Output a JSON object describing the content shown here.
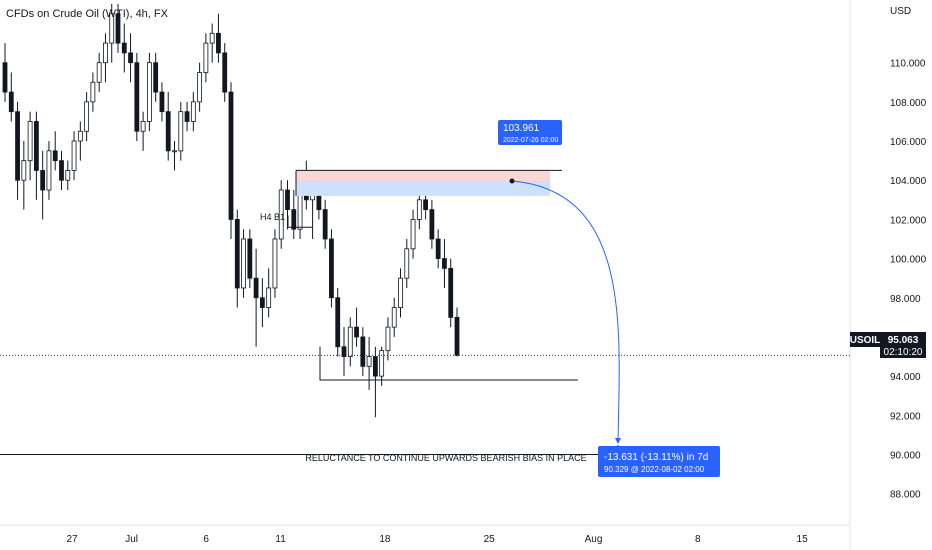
{
  "chart_data": {
    "type": "candlestick",
    "title": "CFDs on Crude Oil (WTI), 4h, FX",
    "symbol": "USOIL",
    "currency": "USD",
    "last_price": "95.063",
    "countdown": "02:10:20",
    "ylim": [
      86.4,
      113.2
    ],
    "y_ticks": [
      "110.000",
      "108.000",
      "106.000",
      "104.000",
      "102.000",
      "100.000",
      "98.000",
      "96.000",
      "94.000",
      "92.000",
      "90.000",
      "88.000"
    ],
    "x_ticks": [
      {
        "label": "27",
        "day": 27
      },
      {
        "label": "Jul",
        "day": 31
      },
      {
        "label": "6",
        "day": 36
      },
      {
        "label": "11",
        "day": 41
      },
      {
        "label": "18",
        "day": 48
      },
      {
        "label": "25",
        "day": 55
      },
      {
        "label": "Aug",
        "day": 62
      },
      {
        "label": "8",
        "day": 69
      },
      {
        "label": "15",
        "day": 76
      }
    ],
    "x_unit_note": "days from 1 June 2022",
    "candles": [
      [
        110.0,
        111.0,
        108.0,
        108.5
      ],
      [
        108.5,
        109.5,
        107.0,
        107.5
      ],
      [
        107.5,
        108.0,
        103.0,
        104.0
      ],
      [
        104.0,
        106.0,
        102.5,
        105.0
      ],
      [
        105.0,
        107.5,
        104.0,
        107.0
      ],
      [
        107.0,
        107.5,
        103.0,
        104.5
      ],
      [
        104.5,
        105.5,
        102.0,
        103.5
      ],
      [
        103.5,
        106.0,
        103.0,
        105.5
      ],
      [
        105.5,
        106.5,
        104.5,
        105.0
      ],
      [
        105.0,
        105.5,
        103.5,
        104.0
      ],
      [
        104.0,
        105.0,
        103.5,
        104.5
      ],
      [
        104.5,
        106.5,
        104.0,
        106.0
      ],
      [
        106.0,
        107.0,
        105.0,
        106.5
      ],
      [
        106.5,
        108.5,
        106.0,
        108.0
      ],
      [
        108.0,
        109.5,
        107.5,
        109.0
      ],
      [
        109.0,
        110.5,
        108.5,
        110.0
      ],
      [
        110.0,
        111.5,
        109.0,
        111.0
      ],
      [
        111.0,
        113.0,
        110.0,
        112.5
      ],
      [
        112.5,
        113.0,
        110.5,
        111.0
      ],
      [
        111.0,
        112.0,
        109.5,
        110.5
      ],
      [
        110.5,
        111.5,
        109.0,
        110.0
      ],
      [
        110.0,
        110.5,
        106.0,
        106.5
      ],
      [
        106.5,
        107.5,
        105.5,
        107.0
      ],
      [
        107.0,
        110.5,
        106.5,
        110.0
      ],
      [
        110.0,
        110.5,
        108.0,
        108.5
      ],
      [
        108.5,
        109.0,
        107.0,
        107.5
      ],
      [
        107.5,
        108.5,
        105.0,
        105.5
      ],
      [
        105.5,
        106.0,
        104.5,
        105.5
      ],
      [
        105.5,
        108.0,
        105.0,
        107.5
      ],
      [
        107.5,
        108.0,
        106.5,
        107.0
      ],
      [
        107.0,
        108.5,
        106.5,
        108.0
      ],
      [
        108.0,
        110.0,
        107.5,
        109.5
      ],
      [
        109.5,
        111.5,
        109.0,
        111.0
      ],
      [
        111.0,
        112.0,
        110.0,
        111.5
      ],
      [
        111.5,
        112.5,
        110.0,
        110.5
      ],
      [
        110.5,
        111.0,
        108.0,
        108.5
      ],
      [
        108.5,
        109.0,
        101.0,
        102.0
      ],
      [
        102.0,
        102.5,
        97.5,
        98.5
      ],
      [
        98.5,
        101.5,
        98.0,
        101.0
      ],
      [
        101.0,
        101.5,
        98.5,
        99.0
      ],
      [
        99.0,
        100.5,
        95.5,
        98.0
      ],
      [
        98.0,
        99.0,
        96.5,
        97.5
      ],
      [
        97.5,
        99.5,
        97.0,
        98.5
      ],
      [
        98.5,
        101.5,
        98.0,
        101.0
      ],
      [
        101.0,
        104.0,
        100.5,
        103.5
      ],
      [
        103.5,
        104.0,
        101.5,
        102.5
      ],
      [
        102.5,
        103.5,
        101.0,
        101.5
      ],
      [
        101.5,
        104.5,
        101.0,
        104.0
      ],
      [
        104.0,
        105.0,
        102.5,
        103.0
      ],
      [
        103.0,
        104.5,
        101.0,
        104.0
      ],
      [
        104.0,
        104.5,
        102.0,
        102.5
      ],
      [
        102.5,
        103.0,
        100.5,
        101.0
      ],
      [
        101.0,
        101.5,
        97.5,
        98.0
      ],
      [
        98.0,
        98.5,
        95.0,
        95.5
      ],
      [
        95.5,
        96.5,
        94.0,
        95.0
      ],
      [
        95.0,
        97.0,
        94.5,
        96.5
      ],
      [
        96.5,
        97.5,
        95.5,
        96.0
      ],
      [
        96.0,
        96.5,
        94.0,
        94.5
      ],
      [
        94.5,
        96.0,
        93.3,
        95.0
      ],
      [
        95.0,
        95.5,
        91.9,
        94.0
      ],
      [
        94.0,
        95.5,
        93.5,
        95.3
      ],
      [
        95.3,
        97.0,
        94.8,
        96.5
      ],
      [
        96.5,
        98.0,
        96.0,
        97.5
      ],
      [
        97.5,
        99.5,
        97.0,
        99.0
      ],
      [
        99.0,
        101.0,
        98.5,
        100.5
      ],
      [
        100.5,
        102.5,
        100.0,
        102.0
      ],
      [
        102.0,
        103.5,
        101.5,
        103.0
      ],
      [
        103.0,
        104.3,
        102.0,
        102.5
      ],
      [
        102.5,
        103.0,
        100.5,
        101.0
      ],
      [
        101.0,
        101.5,
        99.5,
        100.0
      ],
      [
        100.0,
        101.0,
        98.5,
        99.5
      ],
      [
        99.5,
        100.0,
        96.5,
        97.0
      ],
      [
        97.0,
        97.5,
        95.0,
        95.063
      ]
    ],
    "annotations": {
      "h4_b1_label": "H4 B1",
      "reference_price": 95.063,
      "support_level": 93.8,
      "low_level": 90.0,
      "resistance_zone": {
        "top": 104.5,
        "bottom": 103.2,
        "mid": 103.961
      },
      "projection": {
        "start": {
          "label": "103.961",
          "date": "2022-07-26 02:00",
          "price": 103.961
        },
        "end": {
          "price": 90.329,
          "change": "-13.631 (-13.11%) in 7d",
          "detail": "90.329 @ 2022-08-02 02:00"
        }
      },
      "note": "RELUCTANCE TO CONTINUE UPWARDS BEARISH BIAS IN PLACE"
    },
    "colors": {
      "up": "#26a69a",
      "down": "#ef5350",
      "candle": "#131722",
      "projection": "#2962ff",
      "zone_top": "#f8d7d7",
      "zone_bottom": "#cfe0fb"
    }
  }
}
